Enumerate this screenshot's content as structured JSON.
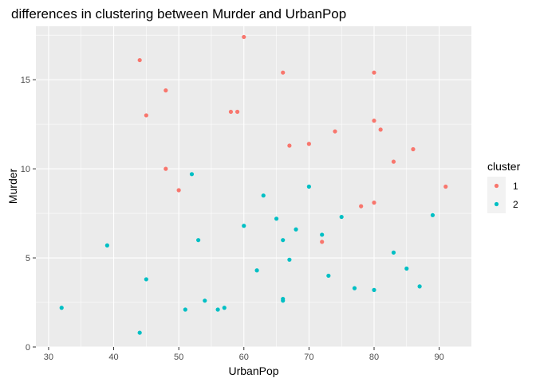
{
  "chart_data": {
    "type": "scatter",
    "title": "differences in clustering between Murder and UrbanPop",
    "xlabel": "UrbanPop",
    "ylabel": "Murder",
    "xlim": [
      28.05,
      94.95
    ],
    "ylim": [
      0,
      18.0
    ],
    "x_ticks": [
      30,
      40,
      50,
      60,
      70,
      80,
      90
    ],
    "y_ticks": [
      0,
      5,
      10,
      15
    ],
    "grid": true,
    "legend": {
      "title": "cluster",
      "position": "right"
    },
    "series": [
      {
        "name": "1",
        "color": "#F8766D",
        "points": [
          [
            60,
            17.4
          ],
          [
            44,
            16.1
          ],
          [
            66,
            15.4
          ],
          [
            80,
            15.4
          ],
          [
            48,
            14.4
          ],
          [
            58,
            13.2
          ],
          [
            59,
            13.2
          ],
          [
            45,
            13.0
          ],
          [
            80,
            12.7
          ],
          [
            81,
            12.2
          ],
          [
            74,
            12.1
          ],
          [
            67,
            11.3
          ],
          [
            70,
            11.4
          ],
          [
            86,
            11.1
          ],
          [
            83,
            10.4
          ],
          [
            48,
            10.0
          ],
          [
            91,
            9.0
          ],
          [
            50,
            8.8
          ],
          [
            80,
            8.1
          ],
          [
            78,
            7.9
          ],
          [
            72,
            5.9
          ]
        ]
      },
      {
        "name": "2",
        "color": "#00BFC4",
        "points": [
          [
            52,
            9.7
          ],
          [
            70,
            9.0
          ],
          [
            63,
            8.5
          ],
          [
            89,
            7.4
          ],
          [
            75,
            7.3
          ],
          [
            65,
            7.2
          ],
          [
            60,
            6.8
          ],
          [
            68,
            6.6
          ],
          [
            72,
            6.3
          ],
          [
            66,
            6.0
          ],
          [
            53,
            6.0
          ],
          [
            39,
            5.7
          ],
          [
            83,
            5.3
          ],
          [
            67,
            4.9
          ],
          [
            85,
            4.4
          ],
          [
            62,
            4.3
          ],
          [
            73,
            4.0
          ],
          [
            45,
            3.8
          ],
          [
            87,
            3.4
          ],
          [
            77,
            3.3
          ],
          [
            80,
            3.2
          ],
          [
            66,
            2.7
          ],
          [
            66,
            2.6
          ],
          [
            54,
            2.6
          ],
          [
            32,
            2.2
          ],
          [
            57,
            2.2
          ],
          [
            51,
            2.1
          ],
          [
            56,
            2.1
          ],
          [
            44,
            0.8
          ]
        ]
      }
    ]
  }
}
